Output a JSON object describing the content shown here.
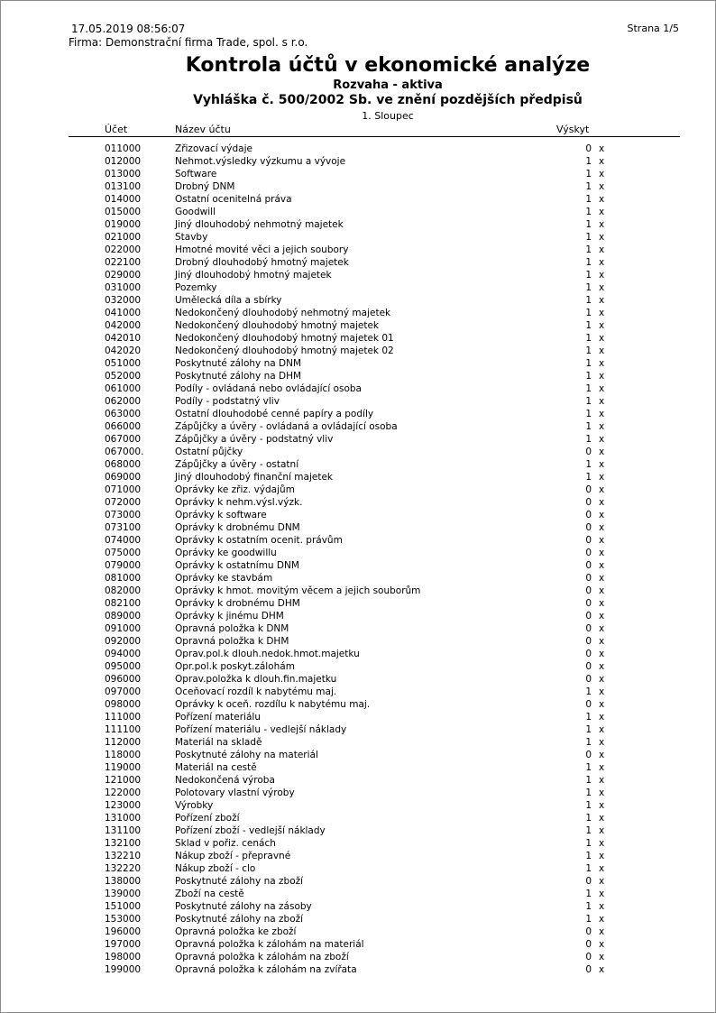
{
  "header": {
    "datetime": "17.05.2019 08:56:07",
    "company": "Firma:  Demonstrační firma Trade, spol. s r.o.",
    "page": "Strana 1/5",
    "title": "Kontrola účtů v ekonomické analýze",
    "subtitle": "Rozvaha - aktiva",
    "regulation": "Vyhláška č. 500/2002 Sb. ve znění pozdějších předpisů",
    "column": "1. Sloupec"
  },
  "columns": {
    "account": "Účet",
    "name": "Název účtu",
    "occurrence": "Výskyt"
  },
  "rows": [
    [
      "011000",
      "Zřizovací výdaje",
      "0",
      "x"
    ],
    [
      "012000",
      "Nehmot.výsledky výzkumu a vývoje",
      "1",
      "x"
    ],
    [
      "013000",
      "Software",
      "1",
      "x"
    ],
    [
      "013100",
      "Drobný DNM",
      "1",
      "x"
    ],
    [
      "014000",
      "Ostatní ocenitelná práva",
      "1",
      "x"
    ],
    [
      "015000",
      "Goodwill",
      "1",
      "x"
    ],
    [
      "019000",
      "Jiný dlouhodobý nehmotný majetek",
      "1",
      "x"
    ],
    [
      "021000",
      "Stavby",
      "1",
      "x"
    ],
    [
      "022000",
      "Hmotné movité věci a jejich soubory",
      "1",
      "x"
    ],
    [
      "022100",
      "Drobný dlouhodobý hmotný majetek",
      "1",
      "x"
    ],
    [
      "029000",
      "Jiný dlouhodobý hmotný majetek",
      "1",
      "x"
    ],
    [
      "031000",
      "Pozemky",
      "1",
      "x"
    ],
    [
      "032000",
      "Umělecká díla a sbírky",
      "1",
      "x"
    ],
    [
      "041000",
      "Nedokončený dlouhodobý nehmotný majetek",
      "1",
      "x"
    ],
    [
      "042000",
      "Nedokončený dlouhodobý hmotný majetek",
      "1",
      "x"
    ],
    [
      "042010",
      "Nedokončený dlouhodobý hmotný majetek 01",
      "1",
      "x"
    ],
    [
      "042020",
      "Nedokončený dlouhodobý hmotný majetek 02",
      "1",
      "x"
    ],
    [
      "051000",
      "Poskytnuté zálohy na DNM",
      "1",
      "x"
    ],
    [
      "052000",
      "Poskytnuté zálohy na DHM",
      "1",
      "x"
    ],
    [
      "061000",
      "Podíly - ovládaná nebo ovládající osoba",
      "1",
      "x"
    ],
    [
      "062000",
      "Podíly - podstatný vliv",
      "1",
      "x"
    ],
    [
      "063000",
      "Ostatní dlouhodobé cenné papíry a podíly",
      "1",
      "x"
    ],
    [
      "066000",
      "Zápůjčky a úvěry - ovládaná a ovládající osoba",
      "1",
      "x"
    ],
    [
      "067000",
      "Zápůjčky a úvěry - podstatný vliv",
      "1",
      "x"
    ],
    [
      "067000.",
      "Ostatní půjčky",
      "0",
      "x"
    ],
    [
      "068000",
      "Zápůjčky a úvěry - ostatní",
      "1",
      "x"
    ],
    [
      "069000",
      "Jiný dlouhodobý finanční majetek",
      "1",
      "x"
    ],
    [
      "071000",
      "Oprávky ke zřiz. výdajům",
      "0",
      "x"
    ],
    [
      "072000",
      "Oprávky k nehm.výsl.výzk.",
      "0",
      "x"
    ],
    [
      "073000",
      "Oprávky k software",
      "0",
      "x"
    ],
    [
      "073100",
      "Oprávky k drobnému DNM",
      "0",
      "x"
    ],
    [
      "074000",
      "Oprávky k ostatním ocenit. právům",
      "0",
      "x"
    ],
    [
      "075000",
      "Oprávky ke goodwillu",
      "0",
      "x"
    ],
    [
      "079000",
      "Oprávky k ostatnímu DNM",
      "0",
      "x"
    ],
    [
      "081000",
      "Oprávky ke stavbám",
      "0",
      "x"
    ],
    [
      "082000",
      "Oprávky k hmot. movitým věcem a jejich souborům",
      "0",
      "x"
    ],
    [
      "082100",
      "Oprávky k drobnému DHM",
      "0",
      "x"
    ],
    [
      "089000",
      "Oprávky k jinému DHM",
      "0",
      "x"
    ],
    [
      "091000",
      "Opravná položka k DNM",
      "0",
      "x"
    ],
    [
      "092000",
      "Opravná položka k DHM",
      "0",
      "x"
    ],
    [
      "094000",
      "Oprav.pol.k dlouh.nedok.hmot.majetku",
      "0",
      "x"
    ],
    [
      "095000",
      "Opr.pol.k poskyt.zálohám",
      "0",
      "x"
    ],
    [
      "096000",
      "Oprav.položka k dlouh.fin.majetku",
      "0",
      "x"
    ],
    [
      "097000",
      "Oceňovací rozdíl k nabytému maj.",
      "1",
      "x"
    ],
    [
      "098000",
      "Oprávky k oceň. rozdílu k nabytému maj.",
      "0",
      "x"
    ],
    [
      "111000",
      "Pořízení materiálu",
      "1",
      "x"
    ],
    [
      "111100",
      "Pořízení materiálu - vedlejší náklady",
      "1",
      "x"
    ],
    [
      "112000",
      "Materiál na skladě",
      "1",
      "x"
    ],
    [
      "118000",
      "Poskytnuté zálohy na materiál",
      "0",
      "x"
    ],
    [
      "119000",
      "Materiál na cestě",
      "1",
      "x"
    ],
    [
      "121000",
      "Nedokončená výroba",
      "1",
      "x"
    ],
    [
      "122000",
      "Polotovary vlastní výroby",
      "1",
      "x"
    ],
    [
      "123000",
      "Výrobky",
      "1",
      "x"
    ],
    [
      "131000",
      "Pořízení zboží",
      "1",
      "x"
    ],
    [
      "131100",
      "Pořízení zboží - vedlejší náklady",
      "1",
      "x"
    ],
    [
      "132100",
      "Sklad v pořiz. cenách",
      "1",
      "x"
    ],
    [
      "132210",
      "Nákup zboží - přepravné",
      "1",
      "x"
    ],
    [
      "132220",
      "Nákup zboží - clo",
      "1",
      "x"
    ],
    [
      "138000",
      "Poskytnuté zálohy na zboží",
      "0",
      "x"
    ],
    [
      "139000",
      "Zboží na cestě",
      "1",
      "x"
    ],
    [
      "151000",
      "Poskytnuté zálohy na zásoby",
      "1",
      "x"
    ],
    [
      "153000",
      "Poskytnuté zálohy na zboží",
      "1",
      "x"
    ],
    [
      "196000",
      "Opravná položka ke zboží",
      "0",
      "x"
    ],
    [
      "197000",
      "Opravná položka k zálohám na materiál",
      "0",
      "x"
    ],
    [
      "198000",
      "Opravná položka k zálohám na zboží",
      "0",
      "x"
    ],
    [
      "199000",
      "Opravná položka k zálohám na zvířata",
      "0",
      "x"
    ]
  ]
}
